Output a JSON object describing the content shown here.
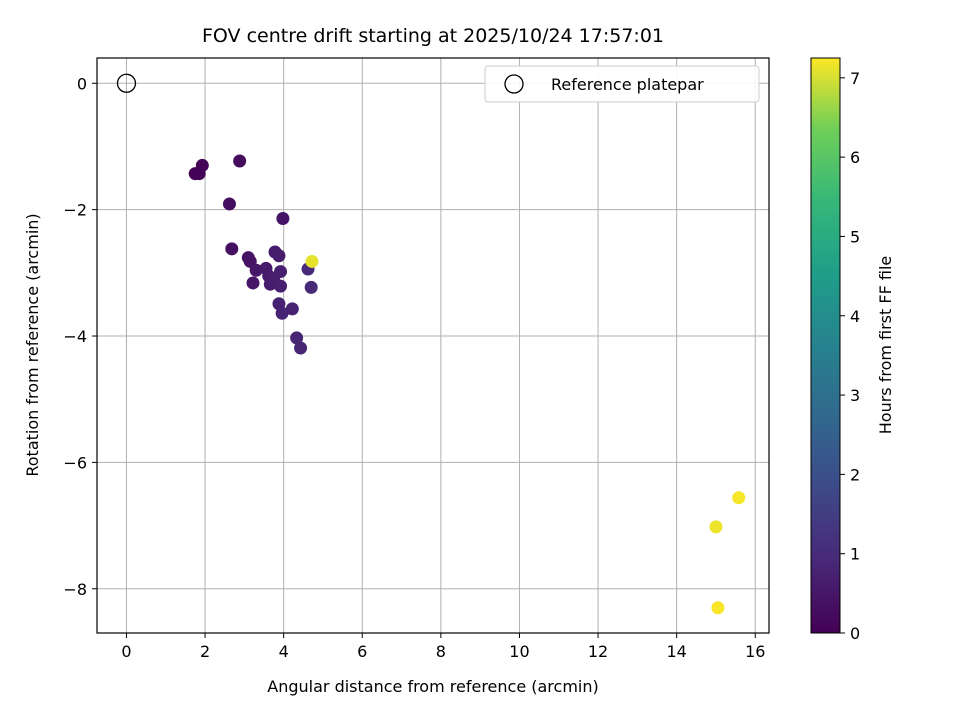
{
  "chart_data": {
    "type": "scatter",
    "title": "FOV centre drift starting at 2025/10/24 17:57:01",
    "xlabel": "Angular distance from reference (arcmin)",
    "ylabel": "Rotation from reference (arcmin)",
    "xlim": [
      -0.75,
      16.35
    ],
    "ylim": [
      -8.7,
      0.4
    ],
    "xticks": [
      0,
      2,
      4,
      6,
      8,
      10,
      12,
      14,
      16
    ],
    "yticks": [
      0,
      -2,
      -4,
      -6,
      -8
    ],
    "grid": true,
    "legend": {
      "position": "top-right",
      "label": "Reference platepar"
    },
    "reference_point": {
      "x": 0,
      "y": 0
    },
    "colorbar": {
      "label": "Hours from first FF file",
      "colormap": "viridis",
      "range": [
        0,
        7.25
      ],
      "ticks": [
        0,
        1,
        2,
        3,
        4,
        5,
        6,
        7
      ]
    },
    "points": [
      {
        "x": 1.75,
        "y": -1.43,
        "t": 0.02
      },
      {
        "x": 1.85,
        "y": -1.43,
        "t": 0.05
      },
      {
        "x": 1.93,
        "y": -1.3,
        "t": 0.08
      },
      {
        "x": 2.88,
        "y": -1.23,
        "t": 0.25
      },
      {
        "x": 2.62,
        "y": -1.91,
        "t": 0.3
      },
      {
        "x": 2.68,
        "y": -2.62,
        "t": 0.35
      },
      {
        "x": 3.98,
        "y": -2.14,
        "t": 0.45
      },
      {
        "x": 3.1,
        "y": -2.76,
        "t": 0.4
      },
      {
        "x": 3.15,
        "y": -2.82,
        "t": 0.42
      },
      {
        "x": 3.3,
        "y": -2.96,
        "t": 0.5
      },
      {
        "x": 3.22,
        "y": -3.16,
        "t": 0.48
      },
      {
        "x": 3.55,
        "y": -2.93,
        "t": 0.55
      },
      {
        "x": 3.62,
        "y": -3.05,
        "t": 0.58
      },
      {
        "x": 3.66,
        "y": -3.18,
        "t": 0.6
      },
      {
        "x": 3.78,
        "y": -2.67,
        "t": 0.62
      },
      {
        "x": 3.88,
        "y": -2.73,
        "t": 0.65
      },
      {
        "x": 3.75,
        "y": -3.12,
        "t": 0.68
      },
      {
        "x": 3.92,
        "y": -2.98,
        "t": 0.7
      },
      {
        "x": 3.92,
        "y": -3.21,
        "t": 0.72
      },
      {
        "x": 3.88,
        "y": -3.49,
        "t": 0.75
      },
      {
        "x": 3.96,
        "y": -3.64,
        "t": 0.78
      },
      {
        "x": 4.22,
        "y": -3.57,
        "t": 0.8
      },
      {
        "x": 4.33,
        "y": -4.03,
        "t": 0.82
      },
      {
        "x": 4.43,
        "y": -4.19,
        "t": 0.85
      },
      {
        "x": 4.62,
        "y": -2.94,
        "t": 0.9
      },
      {
        "x": 4.7,
        "y": -3.23,
        "t": 0.95
      },
      {
        "x": 4.72,
        "y": -2.82,
        "t": 7.1
      },
      {
        "x": 15.0,
        "y": -7.02,
        "t": 7.15
      },
      {
        "x": 15.58,
        "y": -6.56,
        "t": 7.2
      },
      {
        "x": 15.05,
        "y": -8.3,
        "t": 7.22
      }
    ]
  }
}
